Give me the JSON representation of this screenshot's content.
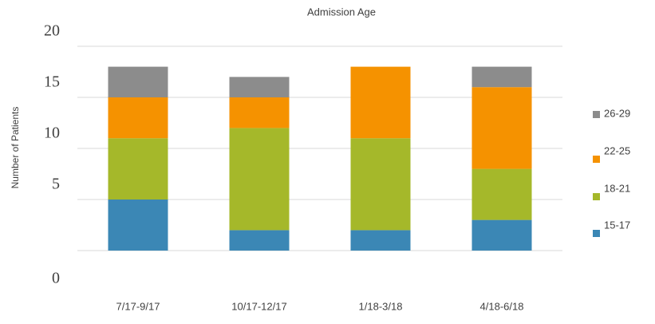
{
  "chart_data": {
    "type": "stacked_bar",
    "title": "Admission Age",
    "y_label": "Number of Patients",
    "categories": [
      "7/17-9/17",
      "10/17-12/17",
      "1/18-3/18",
      "4/18-6/18"
    ],
    "series": [
      {
        "name": "15-17",
        "color": "#3b87b5",
        "values": [
          5,
          2,
          2,
          3
        ]
      },
      {
        "name": "18-21",
        "color": "#a5b82a",
        "values": [
          6,
          10,
          9,
          5
        ]
      },
      {
        "name": "22-25",
        "color": "#f59200",
        "values": [
          4,
          3,
          7,
          8
        ]
      },
      {
        "name": "26-29",
        "color": "#8c8c8c",
        "values": [
          3,
          2,
          0,
          2
        ]
      }
    ],
    "ylim": [
      0,
      20
    ],
    "yticks": [
      0,
      5,
      10,
      15,
      20
    ],
    "grid": true,
    "legend": "right"
  }
}
